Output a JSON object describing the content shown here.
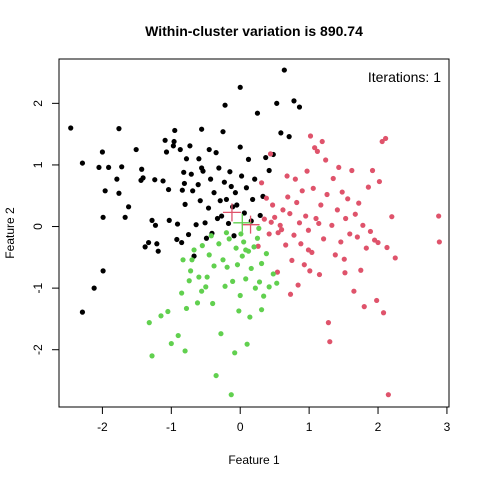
{
  "chart_data": {
    "type": "scatter",
    "title": "Within-cluster variation is 890.74",
    "xlabel": "Feature 1",
    "ylabel": "Feature 2",
    "annotation": "Iterations: 1",
    "xlim": [
      -2.63,
      3.03
    ],
    "ylim": [
      -2.93,
      2.72
    ],
    "x_ticks": [
      -2,
      -1,
      0,
      1,
      2,
      3
    ],
    "y_ticks": [
      -2,
      -1,
      0,
      1,
      2
    ],
    "grid": false,
    "legend": "none",
    "series": [
      {
        "color": "#000000",
        "marker": "circle",
        "points": [
          [
            -2.46,
            1.6
          ],
          [
            -2.29,
            1.03
          ],
          [
            -2.05,
            0.96
          ],
          [
            -2.0,
            1.21
          ],
          [
            -1.99,
            0.15
          ],
          [
            -1.96,
            0.58
          ],
          [
            -1.91,
            0.96
          ],
          [
            -1.79,
            0.77
          ],
          [
            -1.76,
            1.59
          ],
          [
            -1.76,
            0.54
          ],
          [
            -1.67,
            0.15
          ],
          [
            -1.62,
            0.32
          ],
          [
            -1.51,
            1.25
          ],
          [
            -1.44,
            0.75
          ],
          [
            -1.43,
            0.93
          ],
          [
            -1.41,
            0.79
          ],
          [
            -1.38,
            -0.33
          ],
          [
            -1.33,
            -0.26
          ],
          [
            -1.28,
            0.1
          ],
          [
            -1.24,
            0.76
          ],
          [
            -1.23,
            0.02
          ],
          [
            -1.21,
            -0.28
          ],
          [
            -1.19,
            -0.4
          ],
          [
            -1.12,
            0.74
          ],
          [
            -1.09,
            1.4
          ],
          [
            -1.07,
            1.21
          ],
          [
            -1.04,
            0.6
          ],
          [
            -1.03,
            0.1
          ],
          [
            -0.97,
            1.31
          ],
          [
            -0.96,
            1.38
          ],
          [
            -0.95,
            1.56
          ],
          [
            -0.92,
            -0.21
          ],
          [
            -0.91,
            0.04
          ],
          [
            -0.87,
            1.25
          ],
          [
            -0.85,
            -0.26
          ],
          [
            -0.84,
            0.59
          ],
          [
            -0.82,
            0.88
          ],
          [
            -0.81,
            0.7
          ],
          [
            -0.8,
            0.36
          ],
          [
            -0.78,
            1.1
          ],
          [
            -0.75,
            -0.13
          ],
          [
            -0.73,
            1.31
          ],
          [
            -0.71,
            0.85
          ],
          [
            -0.69,
            0.58
          ],
          [
            -0.67,
            -0.48
          ],
          [
            -0.64,
            0.03
          ],
          [
            -0.61,
            0.68
          ],
          [
            -0.6,
            1.1
          ],
          [
            -0.58,
            0.42
          ],
          [
            -0.56,
            1.58
          ],
          [
            -0.54,
            0.9
          ],
          [
            -0.51,
            0.06
          ],
          [
            -0.49,
            -0.19
          ],
          [
            -0.46,
            0.3
          ],
          [
            -0.45,
            1.25
          ],
          [
            -0.43,
            0.77
          ],
          [
            -0.41,
            -0.11
          ],
          [
            -0.38,
            0.55
          ],
          [
            -0.35,
            1.2
          ],
          [
            -0.33,
            0.13
          ],
          [
            -0.31,
            0.95
          ],
          [
            -0.29,
            0.42
          ],
          [
            -0.27,
            0.17
          ],
          [
            -0.25,
            1.54
          ],
          [
            -0.23,
            0.72
          ],
          [
            -0.22,
            1.97
          ],
          [
            -0.2,
            0.44
          ],
          [
            -0.17,
            0.05
          ],
          [
            -0.15,
            0.89
          ],
          [
            -0.13,
            0.65
          ],
          [
            -0.11,
            0.32
          ],
          [
            -0.09,
            -0.15
          ],
          [
            -0.07,
            0.55
          ],
          [
            -0.05,
            0.35
          ],
          [
            0.0,
            2.26
          ],
          [
            0.0,
            1.29
          ],
          [
            0.02,
            0.82
          ],
          [
            0.06,
            0.22
          ],
          [
            0.09,
            0.63
          ],
          [
            0.12,
            1.09
          ],
          [
            0.16,
            0.09
          ],
          [
            0.18,
            0.44
          ],
          [
            0.21,
            0.77
          ],
          [
            0.25,
            1.84
          ],
          [
            0.29,
            0.18
          ],
          [
            0.33,
            0.49
          ],
          [
            0.37,
            1.12
          ],
          [
            0.42,
            0.91
          ],
          [
            0.48,
            1.17
          ],
          [
            0.53,
            2.0
          ],
          [
            0.59,
            1.52
          ],
          [
            0.64,
            2.54
          ],
          [
            0.71,
            1.46
          ],
          [
            0.78,
            2.04
          ],
          [
            0.86,
            1.94
          ],
          [
            -1.99,
            -0.72
          ],
          [
            -2.12,
            -1.0
          ],
          [
            -2.29,
            -1.39
          ],
          [
            -1.72,
            0.97
          ],
          [
            -0.56,
            0.95
          ]
        ]
      },
      {
        "color": "#DF536B",
        "marker": "circle",
        "points": [
          [
            0.31,
            0.71
          ],
          [
            0.38,
            0.46
          ],
          [
            0.42,
            -0.12
          ],
          [
            0.45,
            0.07
          ],
          [
            0.47,
            0.35
          ],
          [
            0.5,
            0.15
          ],
          [
            0.55,
            -0.1
          ],
          [
            0.58,
            0.02
          ],
          [
            0.62,
            0.27
          ],
          [
            0.66,
            -0.3
          ],
          [
            0.69,
            0.48
          ],
          [
            0.72,
            0.21
          ],
          [
            0.75,
            -0.55
          ],
          [
            0.78,
            -0.14
          ],
          [
            0.8,
            0.77
          ],
          [
            0.82,
            0.39
          ],
          [
            0.84,
            -0.95
          ],
          [
            0.86,
            0.06
          ],
          [
            0.88,
            -0.28
          ],
          [
            0.9,
            0.58
          ],
          [
            0.93,
            -0.62
          ],
          [
            0.95,
            0.17
          ],
          [
            0.97,
            0.9
          ],
          [
            0.99,
            -0.06
          ],
          [
            1.02,
            1.47
          ],
          [
            1.04,
            -0.42
          ],
          [
            1.06,
            0.62
          ],
          [
            1.08,
            1.28
          ],
          [
            1.1,
            0.13
          ],
          [
            1.12,
            1.22
          ],
          [
            1.15,
            -0.78
          ],
          [
            1.17,
            0.35
          ],
          [
            1.19,
            1.38
          ],
          [
            1.21,
            -0.2
          ],
          [
            1.24,
            1.08
          ],
          [
            1.26,
            0.52
          ],
          [
            1.28,
            -1.56
          ],
          [
            1.3,
            -1.87
          ],
          [
            1.33,
            0.02
          ],
          [
            1.35,
            0.78
          ],
          [
            1.38,
            -0.46
          ],
          [
            1.41,
            0.27
          ],
          [
            1.43,
            0.96
          ],
          [
            1.46,
            -0.25
          ],
          [
            1.48,
            0.56
          ],
          [
            1.51,
            -0.53
          ],
          [
            1.53,
            0.13
          ],
          [
            1.56,
            0.45
          ],
          [
            1.59,
            -0.12
          ],
          [
            1.62,
            0.91
          ],
          [
            1.65,
            -1.05
          ],
          [
            1.67,
            0.2
          ],
          [
            1.7,
            -0.17
          ],
          [
            1.72,
            0.38
          ],
          [
            1.75,
            -0.71
          ],
          [
            1.78,
            0.02
          ],
          [
            1.8,
            -1.3
          ],
          [
            1.83,
            -0.35
          ],
          [
            1.86,
            0.64
          ],
          [
            1.89,
            -0.08
          ],
          [
            1.92,
            0.91
          ],
          [
            1.95,
            -0.22
          ],
          [
            1.98,
            -1.2
          ],
          [
            2.0,
            -0.26
          ],
          [
            2.02,
            0.73
          ],
          [
            2.06,
            1.38
          ],
          [
            2.08,
            -1.4
          ],
          [
            2.11,
            1.43
          ],
          [
            2.13,
            -0.34
          ],
          [
            2.15,
            -2.73
          ],
          [
            2.2,
            0.16
          ],
          [
            2.25,
            -0.51
          ],
          [
            2.88,
            0.17
          ],
          [
            2.89,
            -0.25
          ],
          [
            0.44,
            1.18
          ],
          [
            0.68,
            0.82
          ],
          [
            1.14,
            0.05
          ],
          [
            0.26,
            -0.32
          ],
          [
            0.35,
            0.12
          ],
          [
            0.54,
            -0.74
          ],
          [
            0.6,
            -0.05
          ],
          [
            0.73,
            -1.1
          ],
          [
            1.52,
            -0.75
          ],
          [
            0.99,
            -0.38
          ],
          [
            1.01,
            -0.72
          ]
        ]
      },
      {
        "color": "#61D04F",
        "marker": "circle",
        "points": [
          [
            -1.32,
            -1.56
          ],
          [
            -1.28,
            -2.1
          ],
          [
            -1.15,
            -1.45
          ],
          [
            -1.05,
            -1.38
          ],
          [
            -1.0,
            -1.9
          ],
          [
            -0.9,
            -1.77
          ],
          [
            -0.85,
            -1.08
          ],
          [
            -0.8,
            -2.02
          ],
          [
            -0.78,
            -1.33
          ],
          [
            -0.72,
            -0.72
          ],
          [
            -0.7,
            -0.54
          ],
          [
            -0.67,
            -0.38
          ],
          [
            -0.62,
            -1.24
          ],
          [
            -0.6,
            -0.82
          ],
          [
            -0.55,
            -0.31
          ],
          [
            -0.5,
            -0.98
          ],
          [
            -0.45,
            -0.46
          ],
          [
            -0.42,
            -0.15
          ],
          [
            -0.38,
            -0.64
          ],
          [
            -0.35,
            -2.42
          ],
          [
            -0.31,
            -0.28
          ],
          [
            -0.28,
            -1.74
          ],
          [
            -0.25,
            -0.54
          ],
          [
            -0.22,
            -0.97
          ],
          [
            -0.2,
            -0.1
          ],
          [
            -0.16,
            -0.2
          ],
          [
            -0.13,
            -2.73
          ],
          [
            -0.11,
            -0.89
          ],
          [
            -0.08,
            -2.05
          ],
          [
            -0.06,
            -0.35
          ],
          [
            -0.04,
            -0.62
          ],
          [
            -0.02,
            -1.37
          ],
          [
            0.0,
            -1.12
          ],
          [
            0.01,
            -0.12
          ],
          [
            0.03,
            -0.48
          ],
          [
            0.05,
            -0.25
          ],
          [
            0.08,
            -0.85
          ],
          [
            0.1,
            -1.91
          ],
          [
            0.12,
            -0.4
          ],
          [
            0.14,
            -1.47
          ],
          [
            0.16,
            -0.68
          ],
          [
            0.2,
            -0.33
          ],
          [
            0.22,
            -1.0
          ],
          [
            0.25,
            -0.19
          ],
          [
            0.28,
            -0.9
          ],
          [
            0.31,
            -0.6
          ],
          [
            0.34,
            -1.13
          ],
          [
            0.38,
            -0.44
          ],
          [
            0.42,
            -0.98
          ],
          [
            0.48,
            -0.77
          ],
          [
            0.53,
            -0.92
          ],
          [
            -0.56,
            -1.05
          ],
          [
            -0.83,
            -0.54
          ],
          [
            -0.4,
            -1.25
          ],
          [
            0.27,
            -0.03
          ],
          [
            -0.19,
            -0.66
          ],
          [
            -0.74,
            -0.88
          ],
          [
            0.08,
            -0.38
          ],
          [
            -0.48,
            -0.82
          ],
          [
            0.31,
            -1.35
          ]
        ]
      }
    ],
    "centroids": [
      {
        "color": "#DF536B",
        "x": -0.12,
        "y": 0.23
      },
      {
        "color": "#DF536B",
        "x": 0.15,
        "y": 0.03
      },
      {
        "color": "#61D04F",
        "x": 0.03,
        "y": 0.06
      }
    ]
  }
}
